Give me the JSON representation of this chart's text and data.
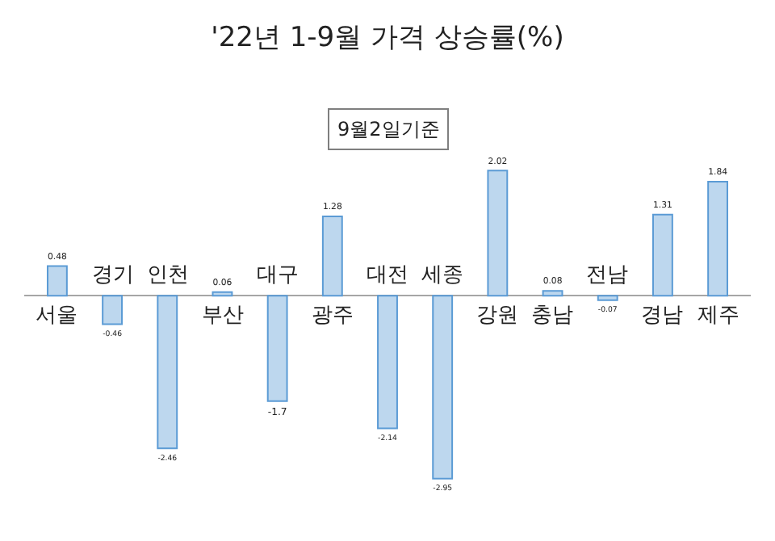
{
  "chart_data": {
    "type": "bar",
    "title": "'22년 1-9월 가격 상승률(%)",
    "subtitle": "9월2일기준",
    "categories": [
      "서울",
      "경기",
      "인천",
      "부산",
      "대구",
      "광주",
      "대전",
      "세종",
      "강원",
      "충남",
      "전남",
      "경남",
      "제주"
    ],
    "values": [
      0.48,
      -0.46,
      -2.46,
      0.06,
      -1.7,
      1.28,
      -2.14,
      -2.95,
      2.02,
      0.08,
      -0.07,
      1.31,
      1.84
    ],
    "color": "#bdd7ee",
    "relative": false,
    "data_labels": true,
    "grid": false,
    "legend": false
  }
}
